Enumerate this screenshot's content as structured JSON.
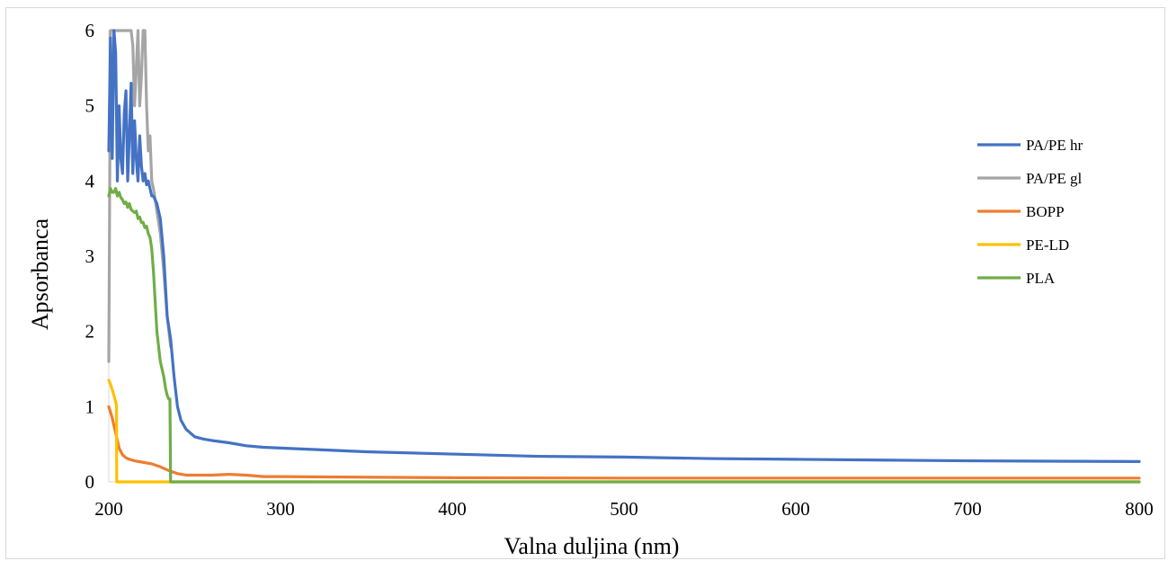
{
  "chart_data": {
    "type": "line",
    "title": "",
    "xlabel": "Valna duljina (nm)",
    "ylabel": "Apsorbanca",
    "xlim": [
      200,
      800
    ],
    "ylim": [
      0,
      6
    ],
    "x_ticks": [
      "200",
      "300",
      "400",
      "500",
      "600",
      "700",
      "800"
    ],
    "y_ticks": [
      "0",
      "1",
      "2",
      "3",
      "4",
      "5",
      "6"
    ],
    "grid": false,
    "legend_position": "right",
    "series": [
      {
        "name": "PA/PE hr",
        "color": "#4472C4",
        "x": [
          200,
          201,
          202,
          203,
          204,
          205,
          206,
          207,
          208,
          209,
          210,
          211,
          212,
          213,
          214,
          215,
          216,
          217,
          218,
          219,
          220,
          221,
          222,
          223,
          224,
          225,
          226,
          228,
          230,
          232,
          234,
          236,
          238,
          240,
          242,
          245,
          250,
          255,
          260,
          270,
          280,
          290,
          300,
          350,
          400,
          450,
          500,
          550,
          600,
          650,
          700,
          750,
          800
        ],
        "y": [
          4.4,
          5.9,
          4.3,
          6.0,
          5.7,
          4.0,
          5.0,
          4.3,
          4.1,
          4.9,
          5.2,
          4.0,
          4.6,
          5.3,
          4.1,
          4.8,
          4.3,
          4.0,
          4.6,
          4.2,
          4.0,
          4.1,
          3.95,
          4.0,
          3.9,
          3.8,
          3.8,
          3.7,
          3.5,
          3.0,
          2.2,
          1.9,
          1.4,
          1.0,
          0.82,
          0.7,
          0.6,
          0.57,
          0.55,
          0.52,
          0.48,
          0.46,
          0.45,
          0.4,
          0.37,
          0.34,
          0.33,
          0.31,
          0.3,
          0.29,
          0.28,
          0.275,
          0.27
        ]
      },
      {
        "name": "PA/PE gl",
        "color": "#A5A5A5",
        "x": [
          200,
          201,
          202,
          203,
          204,
          205,
          206,
          207,
          208,
          209,
          210,
          211,
          212,
          213,
          214,
          215,
          216,
          217,
          218,
          219,
          220,
          221,
          222,
          223,
          224,
          225,
          226,
          228,
          230,
          232,
          234,
          236
        ],
        "y": [
          1.6,
          6.0,
          6.0,
          6.0,
          6.0,
          6.0,
          6.0,
          6.0,
          6.0,
          6.0,
          6.0,
          6.0,
          6.0,
          6.0,
          5.8,
          5.0,
          5.5,
          6.0,
          5.0,
          5.4,
          6.0,
          6.0,
          5.0,
          4.4,
          4.6,
          4.0,
          3.9,
          3.6,
          3.3,
          2.8,
          2.2,
          1.8
        ]
      },
      {
        "name": "BOPP",
        "color": "#ED7D31",
        "x": [
          200,
          202,
          204,
          206,
          208,
          210,
          212,
          215,
          220,
          225,
          230,
          235,
          240,
          245,
          250,
          260,
          270,
          280,
          290,
          300,
          400,
          500,
          600,
          700,
          800
        ],
        "y": [
          1.0,
          0.85,
          0.65,
          0.45,
          0.36,
          0.32,
          0.3,
          0.28,
          0.26,
          0.24,
          0.2,
          0.15,
          0.11,
          0.09,
          0.09,
          0.09,
          0.1,
          0.09,
          0.07,
          0.07,
          0.055,
          0.05,
          0.05,
          0.05,
          0.05
        ]
      },
      {
        "name": "PE-LD",
        "color": "#FFC000",
        "x": [
          200,
          201,
          203,
          204.5,
          204.6,
          210,
          300,
          400,
          500,
          600,
          700,
          800
        ],
        "y": [
          1.35,
          1.3,
          1.15,
          1.02,
          0.0,
          0.0,
          0.0,
          0.0,
          0.0,
          0.0,
          0.0,
          0.0
        ]
      },
      {
        "name": "PLA",
        "color": "#70AD47",
        "x": [
          200,
          201,
          202,
          203,
          204,
          205,
          206,
          207,
          208,
          209,
          210,
          211,
          212,
          213,
          214,
          215,
          216,
          217,
          218,
          219,
          220,
          221,
          222,
          223,
          224,
          225,
          226,
          227,
          228,
          229,
          230,
          231,
          232,
          233,
          234,
          235,
          235.6,
          236,
          240,
          300,
          400,
          500,
          600,
          700,
          800
        ],
        "y": [
          3.8,
          3.9,
          3.85,
          3.85,
          3.9,
          3.8,
          3.85,
          3.78,
          3.75,
          3.7,
          3.72,
          3.65,
          3.7,
          3.62,
          3.6,
          3.58,
          3.6,
          3.5,
          3.52,
          3.45,
          3.45,
          3.38,
          3.4,
          3.3,
          3.25,
          3.1,
          2.8,
          2.4,
          2.0,
          1.8,
          1.6,
          1.5,
          1.4,
          1.25,
          1.15,
          1.1,
          1.1,
          0.0,
          0.0,
          0.0,
          0.0,
          0.0,
          0.0,
          0.0,
          0.0
        ]
      }
    ]
  }
}
